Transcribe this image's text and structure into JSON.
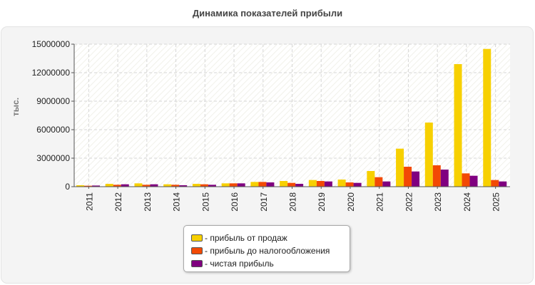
{
  "colors": {
    "sales": "#f7d000",
    "pretax": "#f24a05",
    "net": "#800080",
    "grid": "#d6d6d6",
    "axis": "#555555"
  },
  "chart_data": {
    "type": "bar",
    "title": "Динамика показателей прибыли",
    "ylabel": "тыс.",
    "xlabel": "",
    "ylim": [
      0,
      15000000
    ],
    "yticks": [
      0,
      3000000,
      6000000,
      9000000,
      12000000,
      15000000
    ],
    "categories": [
      "2011",
      "2012",
      "2013",
      "2014",
      "2015",
      "2016",
      "2017",
      "2018",
      "2019",
      "2020",
      "2021",
      "2022",
      "2023",
      "2024",
      "2025"
    ],
    "series": [
      {
        "name": "- прибыль от продаж",
        "values": [
          150000,
          300000,
          350000,
          250000,
          300000,
          350000,
          500000,
          600000,
          700000,
          750000,
          1650000,
          4000000,
          6750000,
          12900000,
          14500000
        ]
      },
      {
        "name": "- прибыль до налогообложения",
        "values": [
          100000,
          200000,
          200000,
          200000,
          250000,
          350000,
          500000,
          400000,
          600000,
          450000,
          1000000,
          2100000,
          2250000,
          1400000,
          700000
        ]
      },
      {
        "name": "- чистая прибыль",
        "values": [
          120000,
          250000,
          250000,
          150000,
          200000,
          350000,
          450000,
          300000,
          550000,
          400000,
          550000,
          1600000,
          1800000,
          1150000,
          550000
        ]
      }
    ],
    "grid": true,
    "legend_position": "bottom-center"
  }
}
